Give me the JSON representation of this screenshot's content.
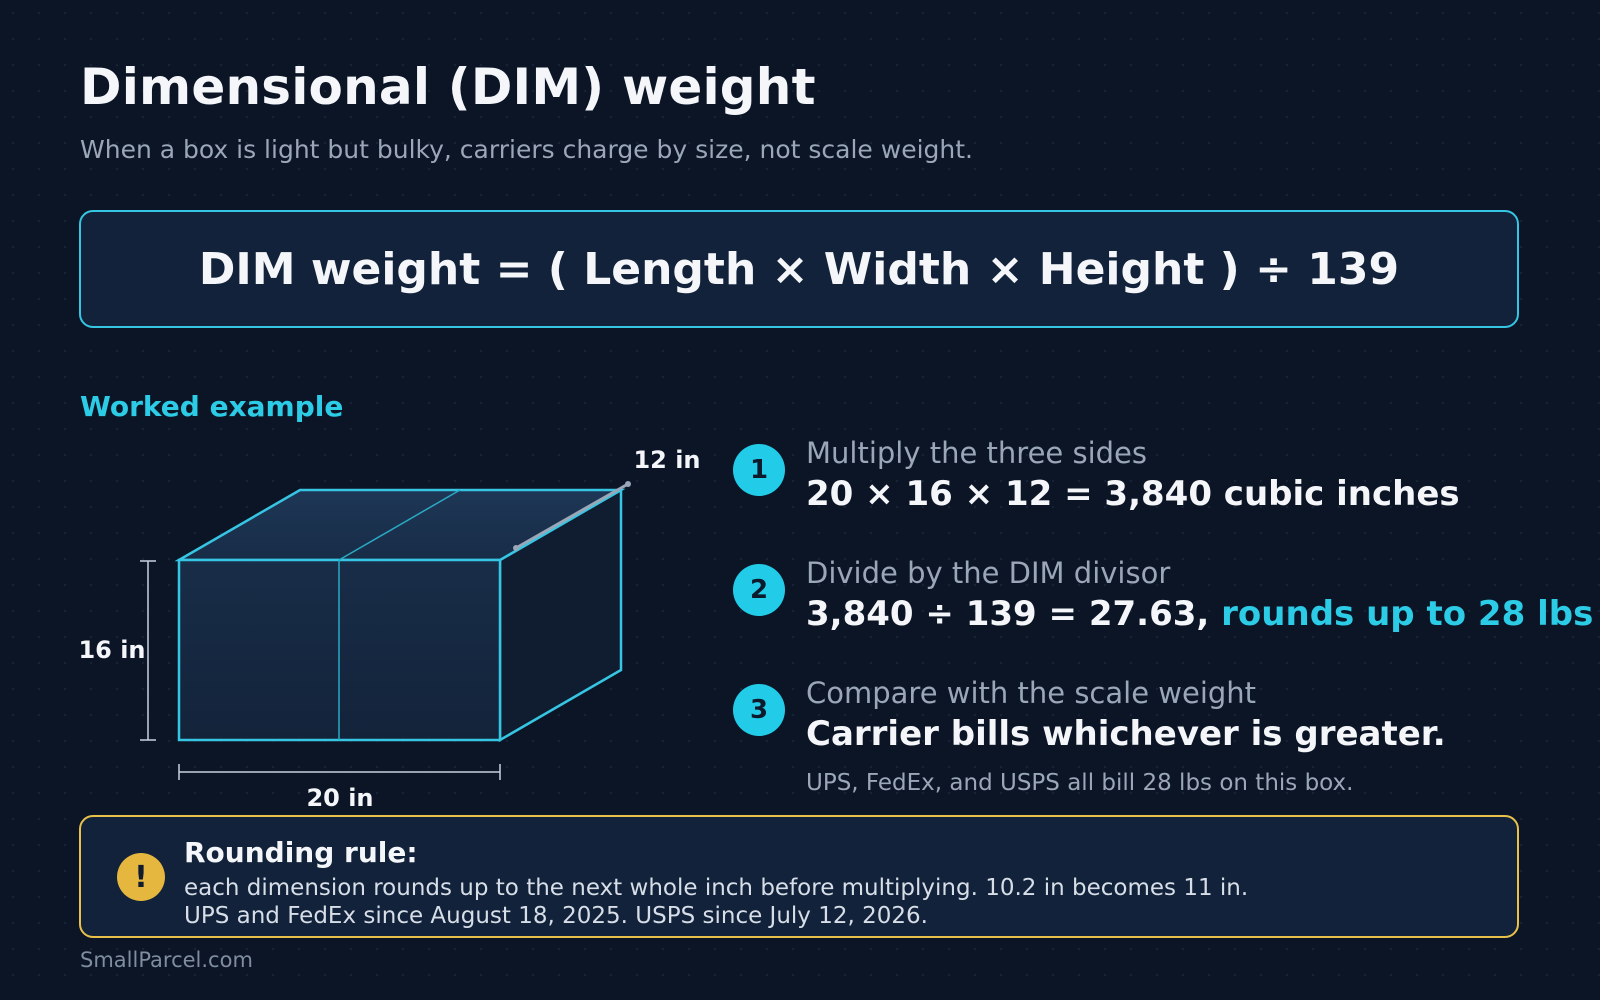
{
  "header": {
    "title": "Dimensional (DIM) weight",
    "subtitle": "When a box is light but bulky, carriers charge by size, not scale weight."
  },
  "formula": "DIM weight = ( Length × Width × Height ) ÷ 139",
  "worked_example": {
    "label": "Worked example",
    "dimensions": {
      "length": "20 in",
      "height": "16 in",
      "depth": "12 in"
    }
  },
  "steps": [
    {
      "number": "1",
      "label": "Multiply the three sides",
      "main": "20 × 16 × 12 = 3,840 cubic inches"
    },
    {
      "number": "2",
      "label": "Divide by the DIM divisor",
      "main": "3,840 ÷ 139 = 27.63,",
      "highlight": "rounds up to 28 lbs"
    },
    {
      "number": "3",
      "label": "Compare with the scale weight",
      "main": "Carrier bills whichever is greater.",
      "note": "UPS, FedEx, and USPS all bill 28 lbs on this box."
    }
  ],
  "rounding_rule": {
    "icon": "!",
    "title": "Rounding rule:",
    "line1": "each dimension rounds up to the next whole inch before multiplying. 10.2 in becomes 11 in.",
    "line2": "UPS and FedEx since August 18, 2025. USPS since July 12, 2026."
  },
  "footer": "SmallParcel.com",
  "colors": {
    "background": "#0b1526",
    "accent_cyan": "#2ccbe6",
    "warning_yellow": "#e6b73f",
    "panel": "#11223a"
  }
}
